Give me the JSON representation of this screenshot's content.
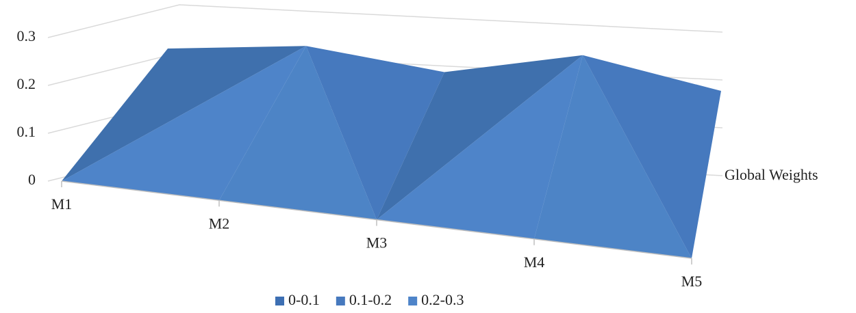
{
  "chart_data": {
    "type": "surface",
    "categories": [
      "M1",
      "M2",
      "M3",
      "M4",
      "M5"
    ],
    "series": [
      {
        "name": "Global Weights",
        "color": "#4a7ec2",
        "values": [
          0.27,
          0.28,
          0.23,
          0.27,
          0.2
        ]
      }
    ],
    "ylim": [
      0,
      0.3
    ],
    "yticks": [
      0,
      0.1,
      0.2,
      0.3
    ],
    "grid": true,
    "bands": [
      {
        "label": "0-0.1",
        "color": "#3d6fb3"
      },
      {
        "label": "0.1-0.2",
        "color": "#4679be"
      },
      {
        "label": "0.2-0.3",
        "color": "#4e84c9"
      }
    ],
    "legend": "bottom"
  }
}
